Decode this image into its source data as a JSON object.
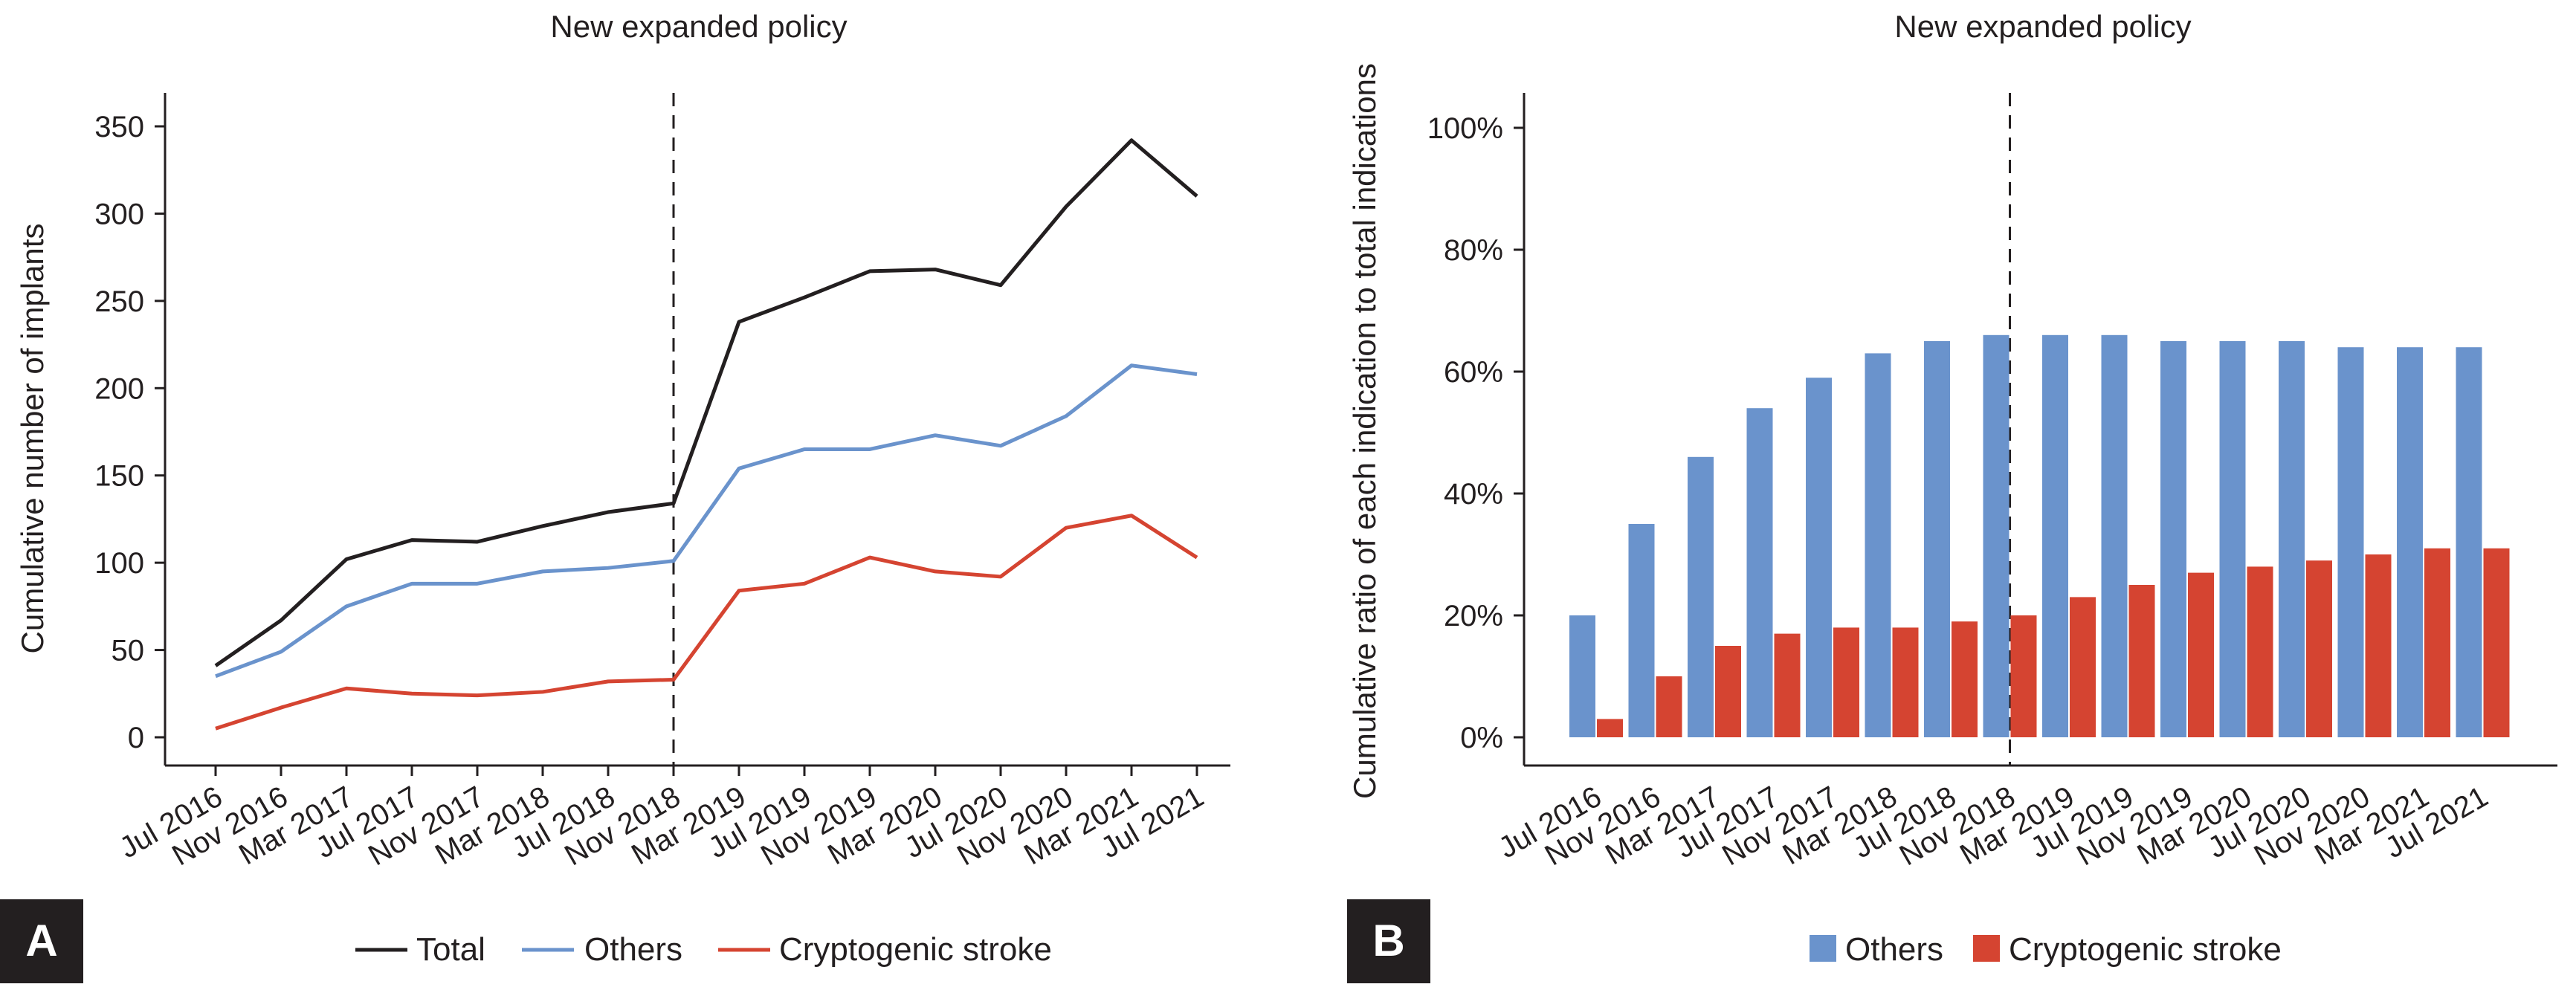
{
  "colors": {
    "total": "#231f20",
    "others": "#6a93cc",
    "cryptogenic": "#d54431",
    "axis": "#231f20",
    "panel_label_bg": "#231f20"
  },
  "chart_data": [
    {
      "panel": "A",
      "type": "line",
      "title": "New expanded policy",
      "xlabel": "",
      "ylabel": "Cumulative number of implants",
      "ylim": [
        0,
        350
      ],
      "yticks": [
        0,
        50,
        100,
        150,
        200,
        250,
        300,
        350
      ],
      "ytick_labels": [
        "0",
        "50",
        "100",
        "150",
        "200",
        "250",
        "300",
        "350"
      ],
      "categories": [
        "Jul 2016",
        "Nov 2016",
        "Mar 2017",
        "Jul 2017",
        "Nov 2017",
        "Mar 2018",
        "Jul 2018",
        "Nov 2018",
        "Mar 2019",
        "Jul 2019",
        "Nov 2019",
        "Mar 2020",
        "Jul 2020",
        "Nov 2020",
        "Mar 2021",
        "Jul 2021"
      ],
      "policy_line_at": "Nov 2018",
      "series": [
        {
          "name": "Total",
          "key": "total",
          "values": [
            41,
            67,
            102,
            113,
            112,
            121,
            129,
            134,
            238,
            252,
            267,
            268,
            259,
            304,
            342,
            310
          ]
        },
        {
          "name": "Others",
          "key": "others",
          "values": [
            35,
            49,
            75,
            88,
            88,
            95,
            97,
            101,
            154,
            165,
            165,
            173,
            167,
            184,
            213,
            208
          ]
        },
        {
          "name": "Cryptogenic stroke",
          "key": "cryptogenic",
          "values": [
            5,
            17,
            28,
            25,
            24,
            26,
            32,
            33,
            84,
            88,
            103,
            95,
            92,
            120,
            127,
            103
          ]
        }
      ],
      "legend": [
        "Total",
        "Others",
        "Cryptogenic stroke"
      ],
      "legend_position": "bottom"
    },
    {
      "panel": "B",
      "type": "bar",
      "title": "New expanded policy",
      "xlabel": "",
      "ylabel": "Cumulative ratio of each indication to total indications",
      "ylim": [
        0,
        100
      ],
      "yticks": [
        0,
        20,
        40,
        60,
        80,
        100
      ],
      "ytick_labels": [
        "0%",
        "20%",
        "40%",
        "60%",
        "80%",
        "100%"
      ],
      "categories": [
        "Jul 2016",
        "Nov 2016",
        "Mar 2017",
        "Jul 2017",
        "Nov 2017",
        "Mar 2018",
        "Jul 2018",
        "Nov 2018",
        "Mar 2019",
        "Jul 2019",
        "Nov 2019",
        "Mar 2020",
        "Jul 2020",
        "Nov 2020",
        "Mar 2021",
        "Jul 2021"
      ],
      "policy_line_at": "Nov 2018",
      "series": [
        {
          "name": "Others",
          "key": "others",
          "values": [
            20,
            35,
            46,
            54,
            59,
            63,
            65,
            66,
            66,
            66,
            65,
            65,
            65,
            64,
            64,
            64
          ]
        },
        {
          "name": "Cryptogenic stroke",
          "key": "cryptogenic",
          "values": [
            3,
            10,
            15,
            17,
            18,
            18,
            19,
            20,
            23,
            25,
            27,
            28,
            29,
            30,
            31,
            31
          ]
        }
      ],
      "legend": [
        "Others",
        "Cryptogenic stroke"
      ],
      "legend_position": "bottom"
    }
  ]
}
